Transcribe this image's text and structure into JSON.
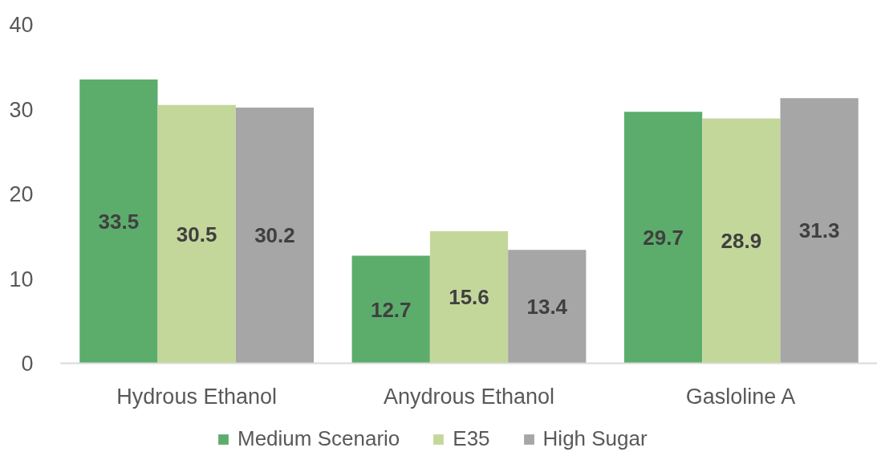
{
  "chart_data": {
    "type": "bar",
    "categories": [
      "Hydrous Ethanol",
      "Anydrous Ethanol",
      "Gasloline A"
    ],
    "series": [
      {
        "name": "Medium Scenario",
        "color": "#5cad6c",
        "values": [
          33.5,
          12.7,
          29.7
        ]
      },
      {
        "name": "E35",
        "color": "#c4d79b",
        "values": [
          30.5,
          15.6,
          28.9
        ]
      },
      {
        "name": "High Sugar",
        "color": "#a6a6a6",
        "values": [
          30.2,
          13.4,
          31.3
        ]
      }
    ],
    "ylim": [
      0,
      40
    ],
    "yticks": [
      0,
      10,
      20,
      30,
      40
    ],
    "data_labels": true,
    "legend": "bottom"
  }
}
